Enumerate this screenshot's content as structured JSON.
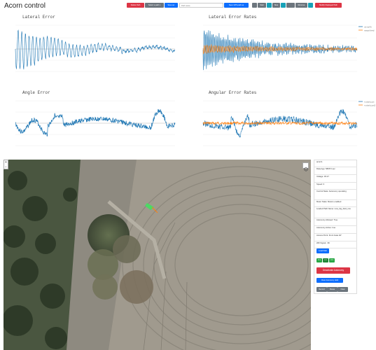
{
  "app": {
    "title": "Acorn control"
  },
  "toolbar": {
    "delete_path": "Delete Path",
    "select_path": "Select a path",
    "save_as": "Save as:",
    "path_name_placeholder": "Path name",
    "save_gps": "Save GPS path as",
    "small_buttons": [
      "Start",
      "",
      "Stop",
      "",
      "Remove",
      ""
    ],
    "modify_path": "Modify Displayed Path"
  },
  "charts": {
    "lateral_error": {
      "title": "Lateral Error"
    },
    "lateral_rates": {
      "title": "Lateral Error Rates",
      "legend": [
        "strafe",
        "smoothed"
      ]
    },
    "angle_error": {
      "title": "Angle Error"
    },
    "angular_rates": {
      "title": "Angular Error Rates",
      "legend": [
        "rotation",
        "rotation2"
      ]
    }
  },
  "colors": {
    "line_blue": "#1f77b4",
    "line_orange": "#ff7f0e",
    "danger": "#dc3545",
    "primary": "#0d6efd",
    "success": "#28a745",
    "secondary": "#6c757d"
  },
  "map": {
    "zoom_in": "+",
    "zoom_out": "−",
    "layers_icon": "layers-icon"
  },
  "status": {
    "robot_name": "acorn1",
    "data_age": "Data Age: 5805.5 sec",
    "voltage": "Voltage: 45.27",
    "speed": "Speed: 0",
    "control_state": "Control State: Autonomy operating",
    "motor_state": "Motor State: Motors enabled",
    "loaded_path": "Loaded Path Name: new_big_field_row",
    "autonomy_allowed": "Autonomy Allowed: True",
    "autonomy_active": "Autonomy Active: true",
    "access_point": "Access Point: Front Gate AP",
    "wifi_signal": "Wifi Signal: -50",
    "load_path": "Load Path",
    "speed_options": [
      "0.1",
      "0.2",
      "0.3"
    ],
    "deactivate": "Deactivate Autonomy",
    "clear_hold": "Clear Autonomy Hold",
    "record": "Record",
    "pause": "Pause",
    "clear": "Clear"
  }
}
